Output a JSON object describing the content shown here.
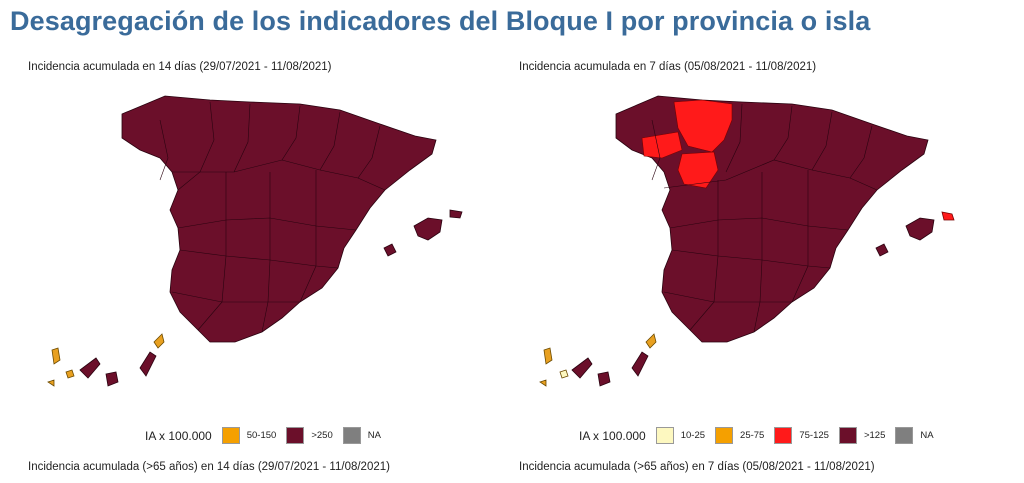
{
  "page": {
    "title": "Desagregación de los indicadores del Bloque I por provincia o isla"
  },
  "colors": {
    "very_high": "#6b0f2a",
    "high_red": "#ff1a1a",
    "medium_orange": "#f5a000",
    "low_yellow": "#fdf8c0",
    "na_gray": "#7f7f7f",
    "island_orange": "#e8a020"
  },
  "left_panel": {
    "title": "Incidencia acumulada en 14 días (29/07/2021 - 11/08/2021)",
    "legend": {
      "label": "IA x 100.000",
      "items": [
        {
          "label": "50-150",
          "color": "#f5a000"
        },
        {
          "label": ">250",
          "color": "#6b0f2a"
        },
        {
          "label": "NA",
          "color": "#7f7f7f"
        }
      ]
    },
    "footer": "Incidencia acumulada (>65 años) en 14 días (29/07/2021 - 11/08/2021)"
  },
  "right_panel": {
    "title": "Incidencia acumulada en 7 días (05/08/2021 - 11/08/2021)",
    "legend": {
      "label": "IA x 100.000",
      "items": [
        {
          "label": "10-25",
          "color": "#fdf8c0"
        },
        {
          "label": "25-75",
          "color": "#f5a000"
        },
        {
          "label": "75-125",
          "color": "#ff1a1a"
        },
        {
          "label": ">125",
          "color": "#6b0f2a"
        },
        {
          "label": "NA",
          "color": "#7f7f7f"
        }
      ]
    },
    "footer": "Incidencia acumulada (>65 años) en 7 días (05/08/2021 - 11/08/2021)"
  }
}
